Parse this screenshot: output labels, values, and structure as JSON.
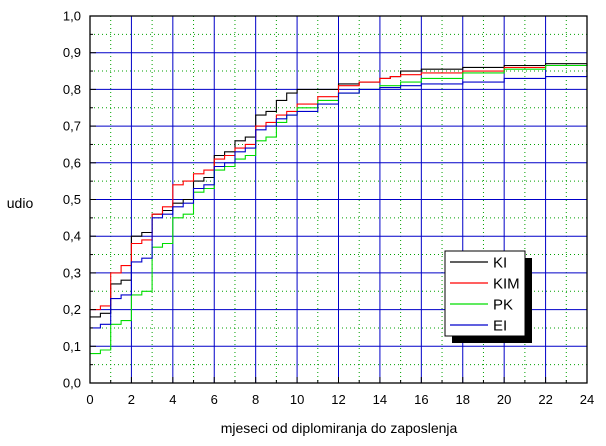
{
  "chart_data": {
    "type": "line",
    "step": true,
    "xlabel": "mjeseci od diplomiranja do zaposlenja",
    "ylabel": "udio",
    "xlim": [
      0,
      24
    ],
    "ylim": [
      0.0,
      1.0
    ],
    "x_ticks": [
      0,
      2,
      4,
      6,
      8,
      10,
      12,
      14,
      16,
      18,
      20,
      22,
      24
    ],
    "x_tick_labels": [
      "0",
      "2",
      "4",
      "6",
      "8",
      "10",
      "12",
      "14",
      "16",
      "18",
      "20",
      "22",
      "24"
    ],
    "y_ticks": [
      0.0,
      0.1,
      0.2,
      0.3,
      0.4,
      0.5,
      0.6,
      0.7,
      0.8,
      0.9,
      1.0
    ],
    "y_tick_labels": [
      "0,0",
      "0,1",
      "0,2",
      "0,3",
      "0,4",
      "0,5",
      "0,6",
      "0,7",
      "0,8",
      "0,9",
      "1,0"
    ],
    "grid": {
      "major": true,
      "minor_dotted": true
    },
    "legend_position": "bottom-right",
    "series": [
      {
        "name": "KI",
        "color": "#000000",
        "x": [
          0,
          0.5,
          1,
          1.5,
          2,
          2.5,
          3,
          3.5,
          4,
          4.5,
          5,
          5.5,
          6,
          6.5,
          7,
          7.5,
          8,
          8.5,
          9,
          9.5,
          10,
          11,
          12,
          13,
          14,
          14.5,
          15,
          16,
          18,
          20,
          22,
          24
        ],
        "y": [
          0.18,
          0.19,
          0.27,
          0.28,
          0.4,
          0.41,
          0.46,
          0.47,
          0.49,
          0.5,
          0.55,
          0.56,
          0.62,
          0.63,
          0.66,
          0.67,
          0.73,
          0.74,
          0.77,
          0.79,
          0.8,
          0.8,
          0.815,
          0.82,
          0.83,
          0.835,
          0.85,
          0.855,
          0.86,
          0.865,
          0.87,
          0.87
        ]
      },
      {
        "name": "KIM",
        "color": "#ff0000",
        "x": [
          0,
          0.5,
          1,
          1.5,
          2,
          2.5,
          3,
          3.5,
          4,
          4.5,
          5,
          5.5,
          6,
          6.5,
          7,
          7.5,
          8,
          8.5,
          9,
          9.5,
          10,
          11,
          12,
          13,
          14,
          14.5,
          15,
          16,
          18,
          20,
          22,
          24
        ],
        "y": [
          0.2,
          0.21,
          0.3,
          0.32,
          0.38,
          0.39,
          0.46,
          0.48,
          0.54,
          0.55,
          0.57,
          0.58,
          0.61,
          0.62,
          0.64,
          0.65,
          0.7,
          0.71,
          0.73,
          0.74,
          0.76,
          0.78,
          0.81,
          0.82,
          0.83,
          0.835,
          0.84,
          0.845,
          0.85,
          0.86,
          0.865,
          0.87
        ]
      },
      {
        "name": "PK",
        "color": "#00dd00",
        "x": [
          0,
          0.5,
          1,
          1.5,
          2,
          2.5,
          3,
          3.5,
          4,
          4.5,
          5,
          5.5,
          6,
          6.5,
          7,
          7.5,
          8,
          8.5,
          9,
          9.5,
          10,
          11,
          12,
          13,
          14,
          15,
          16,
          18,
          20,
          22,
          24
        ],
        "y": [
          0.08,
          0.09,
          0.16,
          0.17,
          0.24,
          0.25,
          0.37,
          0.38,
          0.45,
          0.46,
          0.52,
          0.53,
          0.58,
          0.59,
          0.61,
          0.62,
          0.66,
          0.67,
          0.71,
          0.73,
          0.75,
          0.77,
          0.79,
          0.8,
          0.81,
          0.82,
          0.83,
          0.845,
          0.855,
          0.865,
          0.87
        ]
      },
      {
        "name": "EI",
        "color": "#0000cc",
        "x": [
          0,
          0.5,
          1,
          1.5,
          2,
          2.5,
          3,
          3.5,
          4,
          4.5,
          5,
          5.5,
          6,
          6.5,
          7,
          7.5,
          8,
          8.5,
          9,
          9.5,
          10,
          11,
          12,
          13,
          14,
          15,
          16,
          18,
          20,
          22,
          24
        ],
        "y": [
          0.15,
          0.16,
          0.23,
          0.24,
          0.33,
          0.34,
          0.45,
          0.46,
          0.48,
          0.49,
          0.53,
          0.54,
          0.59,
          0.6,
          0.63,
          0.64,
          0.69,
          0.7,
          0.72,
          0.73,
          0.74,
          0.76,
          0.79,
          0.8,
          0.805,
          0.81,
          0.815,
          0.82,
          0.83,
          0.835,
          0.84
        ]
      }
    ]
  }
}
